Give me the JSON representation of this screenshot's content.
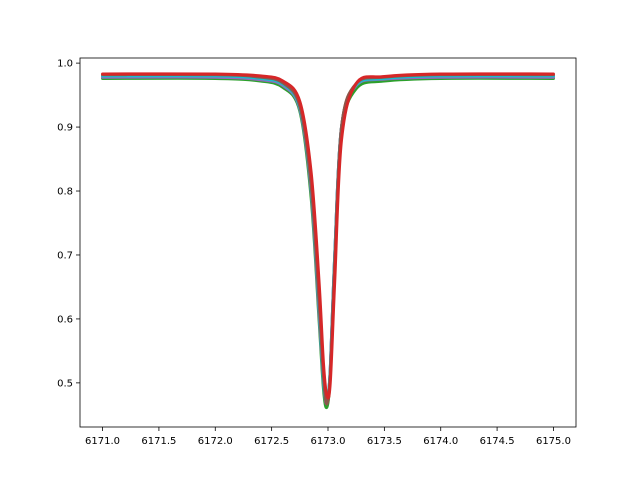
{
  "chart_data": {
    "type": "line",
    "title": "",
    "xlabel": "",
    "ylabel": "",
    "xlim": [
      6170.8,
      6175.2
    ],
    "ylim": [
      0.431,
      1.008
    ],
    "x_ticks": [
      6171.0,
      6171.5,
      6172.0,
      6172.5,
      6173.0,
      6173.5,
      6174.0,
      6174.5,
      6175.0
    ],
    "x_tick_labels": [
      "6171.0",
      "6171.5",
      "6172.0",
      "6172.5",
      "6173.0",
      "6173.5",
      "6174.0",
      "6174.5",
      "6175.0"
    ],
    "y_ticks": [
      0.5,
      0.6,
      0.7,
      0.8,
      0.9,
      1.0
    ],
    "y_tick_labels": [
      "0.5",
      "0.6",
      "0.7",
      "0.8",
      "0.9",
      "1.0"
    ],
    "grid": false,
    "legend": "none",
    "line_center": 6172.98,
    "series": [
      {
        "color": "#1f77b4",
        "x": [
          6171.0,
          6172.0,
          6172.4,
          6172.6,
          6172.75,
          6172.85,
          6172.92,
          6172.96,
          6172.99,
          6173.02,
          6173.06,
          6173.12,
          6173.25,
          6173.5,
          6174.0,
          6175.0
        ],
        "y": [
          0.979,
          0.979,
          0.975,
          0.966,
          0.93,
          0.8,
          0.62,
          0.5,
          0.47,
          0.52,
          0.7,
          0.9,
          0.966,
          0.976,
          0.979,
          0.979
        ]
      },
      {
        "color": "#ff7f0e",
        "x": [
          6171.0,
          6172.0,
          6172.4,
          6172.6,
          6172.75,
          6172.85,
          6172.92,
          6172.96,
          6172.99,
          6173.02,
          6173.06,
          6173.12,
          6173.25,
          6173.5,
          6174.0,
          6175.0
        ],
        "y": [
          0.981,
          0.981,
          0.977,
          0.968,
          0.932,
          0.81,
          0.63,
          0.51,
          0.465,
          0.515,
          0.69,
          0.9,
          0.967,
          0.977,
          0.981,
          0.981
        ]
      },
      {
        "color": "#2ca02c",
        "x": [
          6171.0,
          6172.0,
          6172.4,
          6172.6,
          6172.75,
          6172.85,
          6172.92,
          6172.96,
          6172.99,
          6173.02,
          6173.06,
          6173.12,
          6173.25,
          6173.5,
          6174.0,
          6175.0
        ],
        "y": [
          0.976,
          0.976,
          0.972,
          0.962,
          0.925,
          0.79,
          0.6,
          0.49,
          0.462,
          0.51,
          0.68,
          0.89,
          0.96,
          0.972,
          0.976,
          0.976
        ]
      },
      {
        "color": "#9467bd",
        "x": [
          6171.0,
          6172.0,
          6172.4,
          6172.6,
          6172.75,
          6172.85,
          6172.92,
          6172.96,
          6172.99,
          6173.02,
          6173.06,
          6173.12,
          6173.25,
          6173.5,
          6174.0,
          6175.0
        ],
        "y": [
          0.978,
          0.978,
          0.974,
          0.965,
          0.928,
          0.8,
          0.61,
          0.5,
          0.468,
          0.52,
          0.7,
          0.9,
          0.965,
          0.975,
          0.978,
          0.978
        ]
      },
      {
        "color": "#17becf",
        "x": [
          6171.0,
          6172.0,
          6172.4,
          6172.6,
          6172.75,
          6172.85,
          6172.92,
          6172.96,
          6172.99,
          6173.02,
          6173.06,
          6173.12,
          6173.25,
          6173.5,
          6174.0,
          6175.0
        ],
        "y": [
          0.98,
          0.98,
          0.976,
          0.967,
          0.93,
          0.805,
          0.62,
          0.5,
          0.472,
          0.52,
          0.7,
          0.9,
          0.966,
          0.976,
          0.98,
          0.98
        ]
      },
      {
        "color": "#8c564b",
        "x": [
          6171.0,
          6172.0,
          6172.4,
          6172.6,
          6172.75,
          6172.85,
          6172.92,
          6172.96,
          6172.99,
          6173.02,
          6173.06,
          6173.12,
          6173.25,
          6173.5,
          6174.0,
          6175.0
        ],
        "y": [
          0.982,
          0.982,
          0.978,
          0.969,
          0.933,
          0.81,
          0.63,
          0.51,
          0.467,
          0.515,
          0.69,
          0.9,
          0.968,
          0.978,
          0.982,
          0.982
        ]
      },
      {
        "color": "#d62728",
        "x": [
          6171.0,
          6172.0,
          6172.4,
          6172.6,
          6172.75,
          6172.85,
          6172.92,
          6172.96,
          6172.99,
          6173.02,
          6173.06,
          6173.12,
          6173.25,
          6173.5,
          6174.0,
          6175.0
        ],
        "y": [
          0.983,
          0.983,
          0.98,
          0.972,
          0.94,
          0.83,
          0.66,
          0.53,
          0.48,
          0.5,
          0.66,
          0.88,
          0.968,
          0.979,
          0.983,
          0.983
        ]
      }
    ]
  }
}
